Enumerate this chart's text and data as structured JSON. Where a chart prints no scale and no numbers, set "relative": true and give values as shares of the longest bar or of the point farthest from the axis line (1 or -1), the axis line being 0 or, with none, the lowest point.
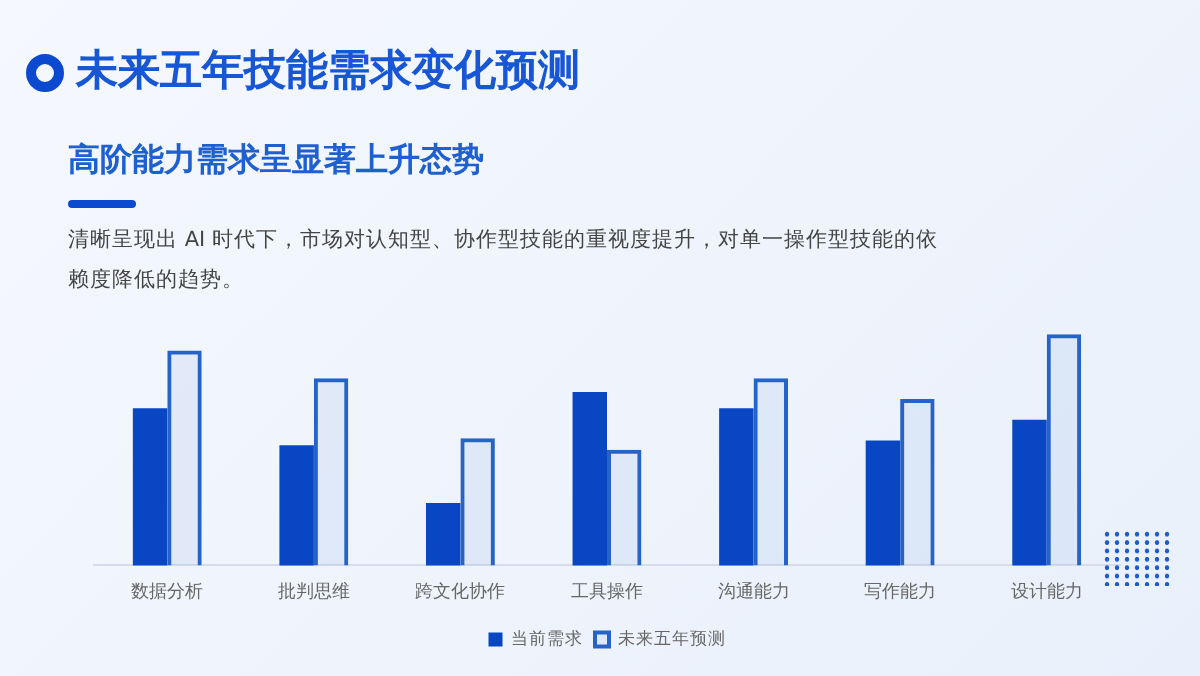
{
  "chart_data": {
    "type": "bar",
    "title": "未来五年技能需求变化预测",
    "subtitle": "高阶能力需求呈显著上升态势",
    "annotations": [
      "清晰呈现出 AI 时代下，市场对认知型、协作型技能的重视度提升，对单一操作型技能的依赖度降低的趋势。"
    ],
    "relative": true,
    "categories": [
      "数据分析",
      "批判思维",
      "跨文化协作",
      "工具操作",
      "沟通能力",
      "写作能力",
      "设计能力"
    ],
    "series": [
      {
        "name": "当前需求",
        "color": "#0846c4",
        "values": [
          0.68,
          0.52,
          0.27,
          0.75,
          0.68,
          0.54,
          0.63
        ]
      },
      {
        "name": "未来五年预测",
        "color": "#2563c9",
        "values": [
          0.93,
          0.81,
          0.55,
          0.5,
          0.81,
          0.72,
          1
        ]
      }
    ],
    "legend": "bottom",
    "grid": false
  }
}
